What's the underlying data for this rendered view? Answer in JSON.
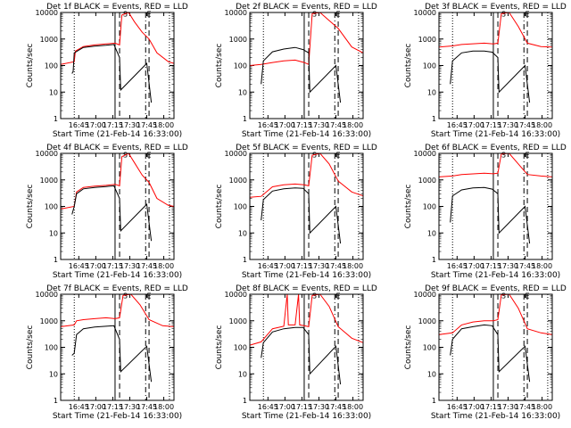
{
  "chart_data": {
    "type": "line",
    "layout": "3x3 grid of panels",
    "x_axis": {
      "label": "Start Time (21-Feb-14 16:33:00)",
      "ticks": [
        {
          "label": "16:45",
          "minutes": 16
        },
        {
          "label": "17:00",
          "minutes": 31
        },
        {
          "label": "17:15",
          "minutes": 46
        },
        {
          "label": "17:30",
          "minutes": 61
        },
        {
          "label": "17:45",
          "minutes": 76
        },
        {
          "label": "18:00",
          "minutes": 91
        }
      ],
      "range_minutes": [
        0,
        100
      ]
    },
    "y_axis": {
      "label": "Counts/sec",
      "scale": "log",
      "range": [
        1,
        10000
      ],
      "ticks": [
        {
          "label": "1",
          "value": 1
        },
        {
          "label": "10",
          "value": 10
        },
        {
          "label": "100",
          "value": 100
        },
        {
          "label": "1000",
          "value": 1000
        },
        {
          "label": "10000",
          "value": 10000
        }
      ]
    },
    "series_colors": {
      "events": "#000000",
      "lld": "#ff0000"
    },
    "panel_markers": [
      {
        "style": "dotted",
        "minutes": [
          12,
          96
        ]
      },
      {
        "style": "solid",
        "minutes": [
          48
        ]
      },
      {
        "style": "dashed",
        "minutes": [
          52,
          78
        ]
      },
      {
        "style": "dotdash",
        "minutes": [
          75
        ]
      }
    ],
    "panel_annotations": [
      {
        "text": "S",
        "minutes": 57,
        "value": 9000
      },
      {
        "text": "E",
        "minutes": 78,
        "value": 9000
      }
    ],
    "panels": [
      {
        "title": "Det 1f BLACK = Events, RED = LLD",
        "events": [
          [
            10,
            50
          ],
          [
            11,
            60
          ],
          [
            12,
            300
          ],
          [
            20,
            480
          ],
          [
            30,
            540
          ],
          [
            40,
            580
          ],
          [
            47,
            620
          ],
          [
            52,
            200
          ],
          [
            53,
            12
          ],
          [
            76,
            120
          ],
          [
            80,
            4
          ]
        ],
        "lld": [
          [
            0,
            110
          ],
          [
            12,
            140
          ],
          [
            13,
            350
          ],
          [
            20,
            520
          ],
          [
            30,
            600
          ],
          [
            40,
            650
          ],
          [
            48,
            700
          ],
          [
            52,
            600
          ],
          [
            54,
            8000
          ],
          [
            60,
            10000
          ],
          [
            65,
            4500
          ],
          [
            72,
            1800
          ],
          [
            78,
            1000
          ],
          [
            85,
            300
          ],
          [
            95,
            140
          ],
          [
            100,
            120
          ]
        ]
      },
      {
        "title": "Det 2f BLACK = Events, RED = LLD",
        "events": [
          [
            10,
            20
          ],
          [
            12,
            150
          ],
          [
            20,
            330
          ],
          [
            30,
            420
          ],
          [
            40,
            480
          ],
          [
            47,
            400
          ],
          [
            52,
            300
          ],
          [
            53,
            10
          ],
          [
            76,
            100
          ],
          [
            80,
            4
          ]
        ],
        "lld": [
          [
            0,
            100
          ],
          [
            10,
            110
          ],
          [
            20,
            130
          ],
          [
            30,
            150
          ],
          [
            40,
            160
          ],
          [
            48,
            130
          ],
          [
            52,
            110
          ],
          [
            55,
            9000
          ],
          [
            62,
            10000
          ],
          [
            70,
            5000
          ],
          [
            78,
            2500
          ],
          [
            90,
            500
          ],
          [
            100,
            300
          ]
        ]
      },
      {
        "title": "Det 3f BLACK = Events, RED = LLD",
        "events": [
          [
            10,
            20
          ],
          [
            12,
            150
          ],
          [
            20,
            300
          ],
          [
            30,
            350
          ],
          [
            40,
            350
          ],
          [
            47,
            320
          ],
          [
            52,
            200
          ],
          [
            53,
            10
          ],
          [
            76,
            100
          ],
          [
            80,
            4
          ]
        ],
        "lld": [
          [
            0,
            500
          ],
          [
            12,
            550
          ],
          [
            20,
            620
          ],
          [
            40,
            700
          ],
          [
            48,
            650
          ],
          [
            52,
            700
          ],
          [
            55,
            9000
          ],
          [
            62,
            10000
          ],
          [
            70,
            3000
          ],
          [
            78,
            700
          ],
          [
            90,
            520
          ],
          [
            100,
            500
          ]
        ]
      },
      {
        "title": "Det 4f BLACK = Events, RED = LLD",
        "events": [
          [
            10,
            50
          ],
          [
            12,
            100
          ],
          [
            14,
            300
          ],
          [
            20,
            460
          ],
          [
            30,
            520
          ],
          [
            40,
            560
          ],
          [
            47,
            600
          ],
          [
            52,
            200
          ],
          [
            53,
            12
          ],
          [
            76,
            120
          ],
          [
            80,
            5
          ]
        ],
        "lld": [
          [
            0,
            80
          ],
          [
            12,
            100
          ],
          [
            14,
            350
          ],
          [
            20,
            520
          ],
          [
            30,
            580
          ],
          [
            40,
            620
          ],
          [
            48,
            680
          ],
          [
            52,
            600
          ],
          [
            54,
            7500
          ],
          [
            60,
            10000
          ],
          [
            65,
            4500
          ],
          [
            72,
            1500
          ],
          [
            78,
            800
          ],
          [
            85,
            200
          ],
          [
            95,
            110
          ],
          [
            100,
            100
          ]
        ]
      },
      {
        "title": "Det 5f BLACK = Events, RED = LLD",
        "events": [
          [
            10,
            30
          ],
          [
            12,
            180
          ],
          [
            20,
            380
          ],
          [
            30,
            460
          ],
          [
            40,
            500
          ],
          [
            47,
            480
          ],
          [
            52,
            300
          ],
          [
            53,
            10
          ],
          [
            76,
            100
          ],
          [
            80,
            4
          ]
        ],
        "lld": [
          [
            0,
            220
          ],
          [
            10,
            240
          ],
          [
            20,
            550
          ],
          [
            30,
            650
          ],
          [
            40,
            700
          ],
          [
            48,
            650
          ],
          [
            52,
            600
          ],
          [
            55,
            8500
          ],
          [
            62,
            10000
          ],
          [
            70,
            4000
          ],
          [
            78,
            900
          ],
          [
            90,
            350
          ],
          [
            100,
            250
          ]
        ]
      },
      {
        "title": "Det 6f BLACK = Events, RED = LLD",
        "events": [
          [
            10,
            25
          ],
          [
            12,
            250
          ],
          [
            20,
            420
          ],
          [
            30,
            500
          ],
          [
            40,
            520
          ],
          [
            47,
            450
          ],
          [
            52,
            300
          ],
          [
            53,
            10
          ],
          [
            76,
            100
          ],
          [
            80,
            4
          ]
        ],
        "lld": [
          [
            0,
            1300
          ],
          [
            12,
            1400
          ],
          [
            20,
            1600
          ],
          [
            40,
            1800
          ],
          [
            48,
            1700
          ],
          [
            52,
            1800
          ],
          [
            55,
            9500
          ],
          [
            62,
            10000
          ],
          [
            70,
            4000
          ],
          [
            78,
            1600
          ],
          [
            90,
            1400
          ],
          [
            100,
            1300
          ]
        ]
      },
      {
        "title": "Det 7f BLACK = Events, RED = LLD",
        "events": [
          [
            10,
            50
          ],
          [
            12,
            60
          ],
          [
            14,
            300
          ],
          [
            20,
            500
          ],
          [
            30,
            580
          ],
          [
            40,
            620
          ],
          [
            47,
            650
          ],
          [
            52,
            200
          ],
          [
            53,
            12
          ],
          [
            76,
            110
          ],
          [
            80,
            5
          ]
        ],
        "lld": [
          [
            0,
            600
          ],
          [
            12,
            700
          ],
          [
            14,
            1000
          ],
          [
            20,
            1100
          ],
          [
            30,
            1200
          ],
          [
            40,
            1300
          ],
          [
            48,
            1200
          ],
          [
            52,
            1300
          ],
          [
            55,
            9000
          ],
          [
            62,
            10000
          ],
          [
            70,
            4000
          ],
          [
            78,
            1100
          ],
          [
            90,
            650
          ],
          [
            100,
            600
          ]
        ]
      },
      {
        "title": "Det 8f BLACK = Events, RED = LLD",
        "events": [
          [
            10,
            40
          ],
          [
            12,
            150
          ],
          [
            20,
            380
          ],
          [
            30,
            500
          ],
          [
            40,
            560
          ],
          [
            47,
            560
          ],
          [
            52,
            300
          ],
          [
            53,
            10
          ],
          [
            76,
            110
          ],
          [
            80,
            4
          ]
        ],
        "lld": [
          [
            0,
            120
          ],
          [
            10,
            160
          ],
          [
            20,
            500
          ],
          [
            30,
            620
          ],
          [
            33,
            10000
          ],
          [
            34,
            700
          ],
          [
            40,
            700
          ],
          [
            43,
            10000
          ],
          [
            44,
            700
          ],
          [
            48,
            650
          ],
          [
            52,
            600
          ],
          [
            55,
            9000
          ],
          [
            62,
            10000
          ],
          [
            70,
            3500
          ],
          [
            78,
            600
          ],
          [
            90,
            220
          ],
          [
            100,
            150
          ]
        ]
      },
      {
        "title": "Det 9f BLACK = Events, RED = LLD",
        "events": [
          [
            10,
            50
          ],
          [
            12,
            200
          ],
          [
            20,
            500
          ],
          [
            30,
            600
          ],
          [
            40,
            700
          ],
          [
            47,
            650
          ],
          [
            52,
            300
          ],
          [
            53,
            12
          ],
          [
            76,
            110
          ],
          [
            80,
            5
          ]
        ],
        "lld": [
          [
            0,
            300
          ],
          [
            12,
            350
          ],
          [
            20,
            700
          ],
          [
            30,
            900
          ],
          [
            40,
            1000
          ],
          [
            48,
            1000
          ],
          [
            52,
            1100
          ],
          [
            55,
            9500
          ],
          [
            62,
            10000
          ],
          [
            70,
            3000
          ],
          [
            78,
            500
          ],
          [
            90,
            350
          ],
          [
            100,
            300
          ]
        ]
      }
    ]
  }
}
